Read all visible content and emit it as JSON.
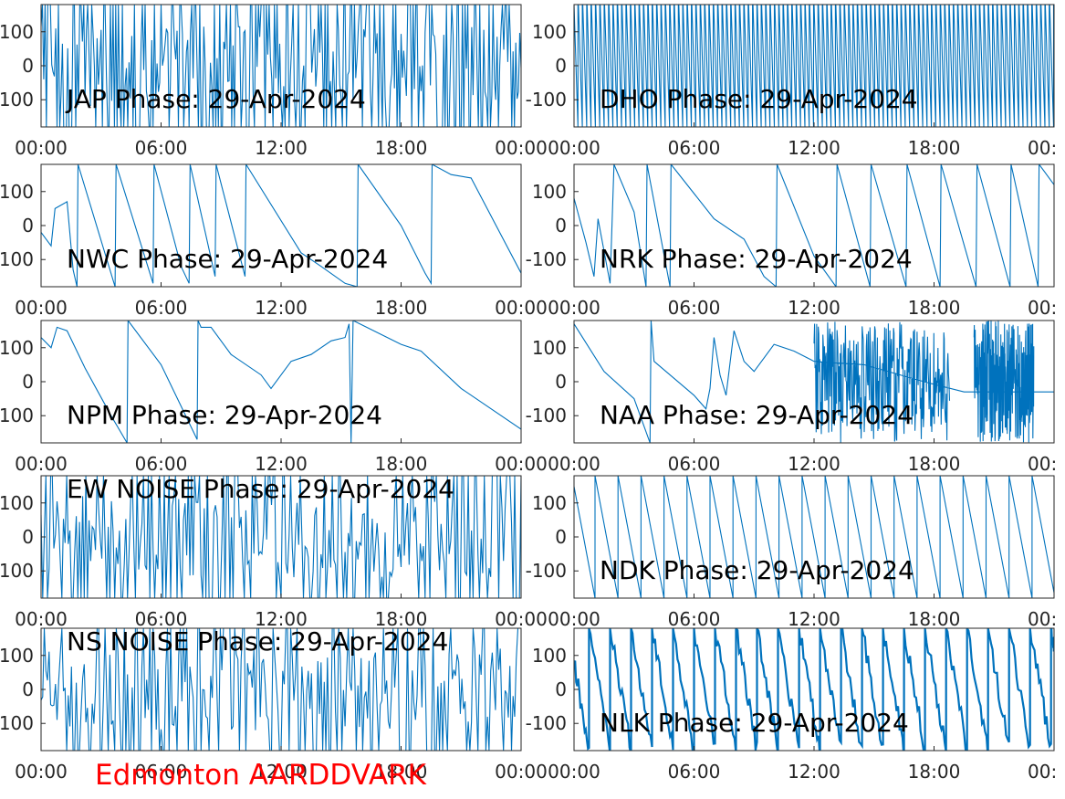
{
  "footer": {
    "text": "Edmonton AARDDVARK",
    "color": "#ff0000"
  },
  "style": {
    "line_color": "#0072bd",
    "axis_color": "#262626",
    "background": "#ffffff"
  },
  "chart_data": [
    {
      "id": "jap",
      "type": "line",
      "title": "JAP Phase: 29-Apr-2024",
      "title_position": "bottom-left",
      "ylim": [
        -180,
        180
      ],
      "yticks": [
        "100",
        "0",
        "100"
      ],
      "xticks": [
        "00:00",
        "06:00",
        "12:00",
        "18:00",
        "00:00"
      ],
      "xlim_hours": [
        0,
        24
      ],
      "pattern": "noise",
      "shape": {
        "density": 360,
        "amplitude": 180,
        "fill": 0.55
      }
    },
    {
      "id": "dho",
      "type": "line",
      "title": "DHO Phase: 29-Apr-2024",
      "title_position": "bottom-left",
      "ylim": [
        -180,
        180
      ],
      "yticks": [
        "100",
        "0",
        "-100"
      ],
      "xticks": [
        "00:00",
        "06:00",
        "12:00",
        "18:00",
        "00:"
      ],
      "xlim_hours": [
        0,
        24
      ],
      "pattern": "dense-wrap",
      "shape": {
        "slope_deg_per_hour": -3600
      }
    },
    {
      "id": "nwc",
      "type": "line",
      "title": "NWC Phase: 29-Apr-2024",
      "title_position": "bottom-left",
      "ylim": [
        -180,
        180
      ],
      "yticks": [
        "100",
        "0",
        "100"
      ],
      "xticks": [
        "00:00",
        "06:00",
        "12:00",
        "18:00",
        "00:00"
      ],
      "xlim_hours": [
        0,
        24
      ],
      "points": [
        [
          0,
          -20
        ],
        [
          0.5,
          -60
        ],
        [
          0.7,
          50
        ],
        [
          1.3,
          70
        ],
        [
          1.6,
          -130
        ],
        [
          1.8,
          -180
        ],
        [
          1.85,
          180
        ],
        [
          3.7,
          -180
        ],
        [
          3.75,
          180
        ],
        [
          5.6,
          -170
        ],
        [
          5.65,
          180
        ],
        [
          7.0,
          -120
        ],
        [
          7.4,
          -170
        ],
        [
          7.45,
          180
        ],
        [
          8.7,
          -150
        ],
        [
          8.75,
          180
        ],
        [
          10.2,
          -150
        ],
        [
          10.25,
          180
        ],
        [
          13.0,
          -80
        ],
        [
          14.0,
          -120
        ],
        [
          15.2,
          -170
        ],
        [
          15.8,
          -180
        ],
        [
          15.85,
          180
        ],
        [
          18.0,
          0
        ],
        [
          19.2,
          -140
        ],
        [
          19.5,
          -170
        ],
        [
          19.55,
          180
        ],
        [
          20.5,
          150
        ],
        [
          21.5,
          140
        ],
        [
          24,
          -140
        ]
      ]
    },
    {
      "id": "nrk",
      "type": "line",
      "title": "NRK Phase: 29-Apr-2024",
      "title_position": "bottom-left",
      "ylim": [
        -180,
        180
      ],
      "yticks": [
        "100",
        "0",
        "-100"
      ],
      "xticks": [
        "00:00",
        "06:00",
        "12:00",
        "18:00",
        "00:"
      ],
      "xlim_hours": [
        0,
        24
      ],
      "points": [
        [
          0,
          80
        ],
        [
          0.6,
          -50
        ],
        [
          1.0,
          -150
        ],
        [
          1.2,
          20
        ],
        [
          1.8,
          -170
        ],
        [
          2.0,
          180
        ],
        [
          3.0,
          40
        ],
        [
          3.6,
          -180
        ],
        [
          3.65,
          180
        ],
        [
          4.8,
          -180
        ],
        [
          4.85,
          180
        ],
        [
          7.0,
          20
        ],
        [
          8.5,
          -40
        ],
        [
          9.5,
          -150
        ],
        [
          10.1,
          -180
        ],
        [
          10.15,
          180
        ],
        [
          12.0,
          -90
        ],
        [
          13.1,
          -180
        ],
        [
          13.15,
          180
        ],
        [
          14.8,
          -180
        ],
        [
          14.85,
          180
        ],
        [
          16.6,
          -180
        ],
        [
          16.65,
          180
        ],
        [
          18.3,
          -180
        ],
        [
          18.35,
          180
        ],
        [
          20.1,
          -180
        ],
        [
          20.15,
          180
        ],
        [
          21.8,
          -180
        ],
        [
          21.85,
          180
        ],
        [
          23.2,
          -180
        ],
        [
          23.25,
          180
        ],
        [
          24,
          120
        ]
      ]
    },
    {
      "id": "npm",
      "type": "line",
      "title": "NPM Phase: 29-Apr-2024",
      "title_position": "bottom-left",
      "ylim": [
        -180,
        180
      ],
      "yticks": [
        "100",
        "0",
        "100"
      ],
      "xticks": [
        "00:00",
        "06:00",
        "12:00",
        "18:00",
        "00:00"
      ],
      "xlim_hours": [
        0,
        24
      ],
      "points": [
        [
          0,
          130
        ],
        [
          0.5,
          100
        ],
        [
          0.8,
          160
        ],
        [
          1.3,
          150
        ],
        [
          2.2,
          40
        ],
        [
          3.5,
          -100
        ],
        [
          4.3,
          -180
        ],
        [
          4.35,
          180
        ],
        [
          6.0,
          50
        ],
        [
          7.8,
          -170
        ],
        [
          7.85,
          180
        ],
        [
          8.0,
          160
        ],
        [
          8.5,
          160
        ],
        [
          9.5,
          80
        ],
        [
          11.0,
          20
        ],
        [
          11.5,
          -20
        ],
        [
          12.5,
          60
        ],
        [
          13.5,
          80
        ],
        [
          14.5,
          120
        ],
        [
          15.2,
          130
        ],
        [
          15.4,
          170
        ],
        [
          15.5,
          -180
        ],
        [
          15.6,
          180
        ],
        [
          18.0,
          110
        ],
        [
          19.0,
          90
        ],
        [
          21.0,
          -20
        ],
        [
          24,
          -140
        ]
      ]
    },
    {
      "id": "naa",
      "type": "line",
      "title": "NAA Phase: 29-Apr-2024",
      "title_position": "bottom-left",
      "ylim": [
        -180,
        180
      ],
      "yticks": [
        "100",
        "0",
        "-100"
      ],
      "xticks": [
        "00:00",
        "06:00",
        "12:00",
        "18:00",
        "00:"
      ],
      "xlim_hours": [
        0,
        24
      ],
      "points": [
        [
          0,
          170
        ],
        [
          1.5,
          30
        ],
        [
          3.0,
          -50
        ],
        [
          3.8,
          -180
        ],
        [
          3.85,
          180
        ],
        [
          4.0,
          60
        ],
        [
          5.0,
          10
        ],
        [
          6.0,
          -40
        ],
        [
          6.6,
          -80
        ],
        [
          6.8,
          -20
        ],
        [
          7.0,
          130
        ],
        [
          7.3,
          20
        ],
        [
          7.6,
          -40
        ],
        [
          8.0,
          150
        ],
        [
          8.5,
          60
        ],
        [
          9.0,
          30
        ],
        [
          10.0,
          110
        ],
        [
          11.0,
          90
        ],
        [
          12.0,
          60
        ],
        [
          14.5,
          50
        ],
        [
          17.5,
          0
        ],
        [
          19.5,
          -30
        ],
        [
          24,
          -30
        ]
      ],
      "noise_segments": [
        [
          12.0,
          18.8
        ],
        [
          20.0,
          23.0
        ]
      ]
    },
    {
      "id": "ew-noise",
      "type": "line",
      "title": "EW NOISE Phase: 29-Apr-2024",
      "title_position": "top-left",
      "ylim": [
        -180,
        180
      ],
      "yticks": [
        "100",
        "0",
        "100"
      ],
      "xticks": [
        "00:00",
        "06:00",
        "12:00",
        "18:00",
        "00:00"
      ],
      "xlim_hours": [
        0,
        24
      ],
      "pattern": "noise",
      "shape": {
        "density": 300,
        "amplitude": 180,
        "fill": 0.45
      }
    },
    {
      "id": "ndk",
      "type": "line",
      "title": "NDK Phase: 29-Apr-2024",
      "title_position": "bottom-left",
      "ylim": [
        -180,
        180
      ],
      "yticks": [
        "100",
        "0",
        "-100"
      ],
      "xticks": [
        "00:00",
        "06:00",
        "12:00",
        "18:00",
        "00:"
      ],
      "xlim_hours": [
        0,
        24
      ],
      "pattern": "sawtooth",
      "shape": {
        "period_hours": 1.15,
        "phase": 0.1
      }
    },
    {
      "id": "ns-noise",
      "type": "line",
      "title": "NS NOISE Phase: 29-Apr-2024",
      "title_position": "top-left",
      "ylim": [
        -180,
        180
      ],
      "yticks": [
        "100",
        "0",
        "100"
      ],
      "xticks": [
        "00:00",
        "06:00",
        "12:00",
        "18:00",
        "00:00"
      ],
      "xlim_hours": [
        0,
        24
      ],
      "pattern": "noise",
      "shape": {
        "density": 300,
        "amplitude": 180,
        "fill": 0.45
      }
    },
    {
      "id": "nlk",
      "type": "line",
      "title": "NLK Phase: 29-Apr-2024",
      "title_position": "bottom-left",
      "ylim": [
        -180,
        180
      ],
      "yticks": [
        "100",
        "0",
        "-100"
      ],
      "xticks": [
        "00:00",
        "06:00",
        "12:00",
        "18:00",
        "00:"
      ],
      "xlim_hours": [
        0,
        24
      ],
      "pattern": "sawtooth-thick",
      "shape": {
        "period_hours": 1.05,
        "phase": 0.3
      }
    }
  ]
}
